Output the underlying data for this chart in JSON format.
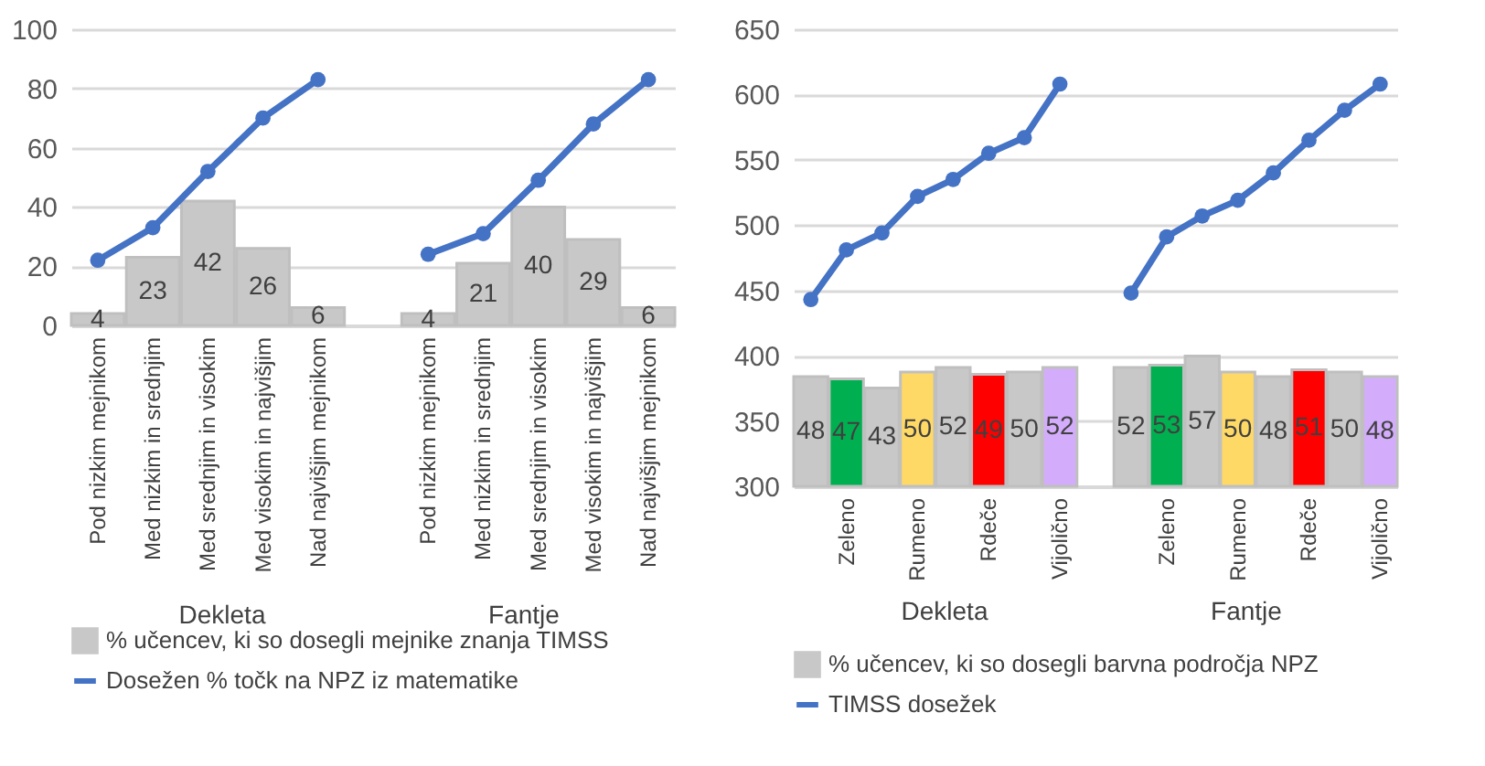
{
  "chart_data": [
    {
      "type": "bar",
      "categories": [
        "Pod nizkim mejnikom",
        "Med nizkim in srednjim",
        "Med srednjim in visokim",
        "Med visokim in najvišjim",
        "Nad najvišjim mejnikom",
        null,
        "Pod nizkim mejnikom",
        "Med nizkim in srednjim",
        "Med srednjim in visokim",
        "Med visokim in najvišjim",
        "Nad najvišjim mejnikom"
      ],
      "series": [
        {
          "name": "% učencev, ki so dosegli mejnike znanja TIMSS",
          "color": "#c9c8c9",
          "values": [
            4,
            23,
            42,
            26,
            6,
            null,
            4,
            21,
            40,
            29,
            6
          ],
          "value_labels": [
            "4",
            "23",
            "42",
            "26",
            "6",
            null,
            "4",
            "21",
            "40",
            "29",
            "6"
          ]
        },
        {
          "name": "Dosežen % točk na NPZ iz matematike",
          "type": "line",
          "color": "#4472c4",
          "values": [
            22,
            33,
            52,
            70,
            83,
            null,
            24,
            31,
            49,
            68,
            83
          ]
        }
      ],
      "ylim": [
        0,
        100
      ],
      "yticks": [
        0,
        20,
        40,
        60,
        80,
        100
      ],
      "grid": "y",
      "legend": "bottom",
      "marker": "circle",
      "line_style": "solid",
      "annotations": [
        "Dekleta",
        "Fantje"
      ]
    },
    {
      "type": "bar",
      "categories": [
        null,
        "Zeleno",
        null,
        "Rumeno",
        null,
        "Rdeče",
        null,
        "Vijolično",
        null,
        null,
        "Zeleno",
        null,
        "Rumeno",
        null,
        "Rdeče",
        null,
        "Vijolično"
      ],
      "series": [
        {
          "name": "% učencev, ki so dosegli barvna področja NPZ",
          "axis": "y2",
          "color": "#c9c8c9",
          "colors": [
            "#c9c8c9",
            "#00b050",
            "#c9c8c9",
            "#ffd966",
            "#c9c8c9",
            "#ff0000",
            "#c9c8c9",
            "#d4acfc",
            null,
            "#c9c8c9",
            "#00b050",
            "#c9c8c9",
            "#ffd966",
            "#c9c8c9",
            "#ff0000",
            "#c9c8c9",
            "#d4acfc"
          ],
          "values": [
            48,
            47,
            43,
            50,
            52,
            49,
            50,
            52,
            null,
            52,
            53,
            57,
            50,
            48,
            51,
            50,
            48
          ],
          "value_labels": [
            "48",
            "47",
            "43",
            "50",
            "52",
            "49",
            "50",
            "52",
            null,
            "52",
            "53",
            "57",
            "50",
            "48",
            "51",
            "50",
            "48"
          ]
        },
        {
          "name": "TIMSS dosežek",
          "type": "line",
          "color": "#4472c4",
          "values": [
            443,
            481,
            494,
            522,
            535,
            555,
            567,
            608,
            null,
            448,
            491,
            507,
            519,
            540,
            565,
            588,
            608
          ]
        }
      ],
      "ylim": [
        300,
        650
      ],
      "yticks": [
        300,
        350,
        400,
        450,
        500,
        550,
        600,
        650
      ],
      "y2lim": [
        0,
        200
      ],
      "grid": "y",
      "legend": "bottom",
      "marker": "circle",
      "line_style": "solid",
      "annotations": [
        "Dekleta",
        "Fantje"
      ]
    }
  ]
}
